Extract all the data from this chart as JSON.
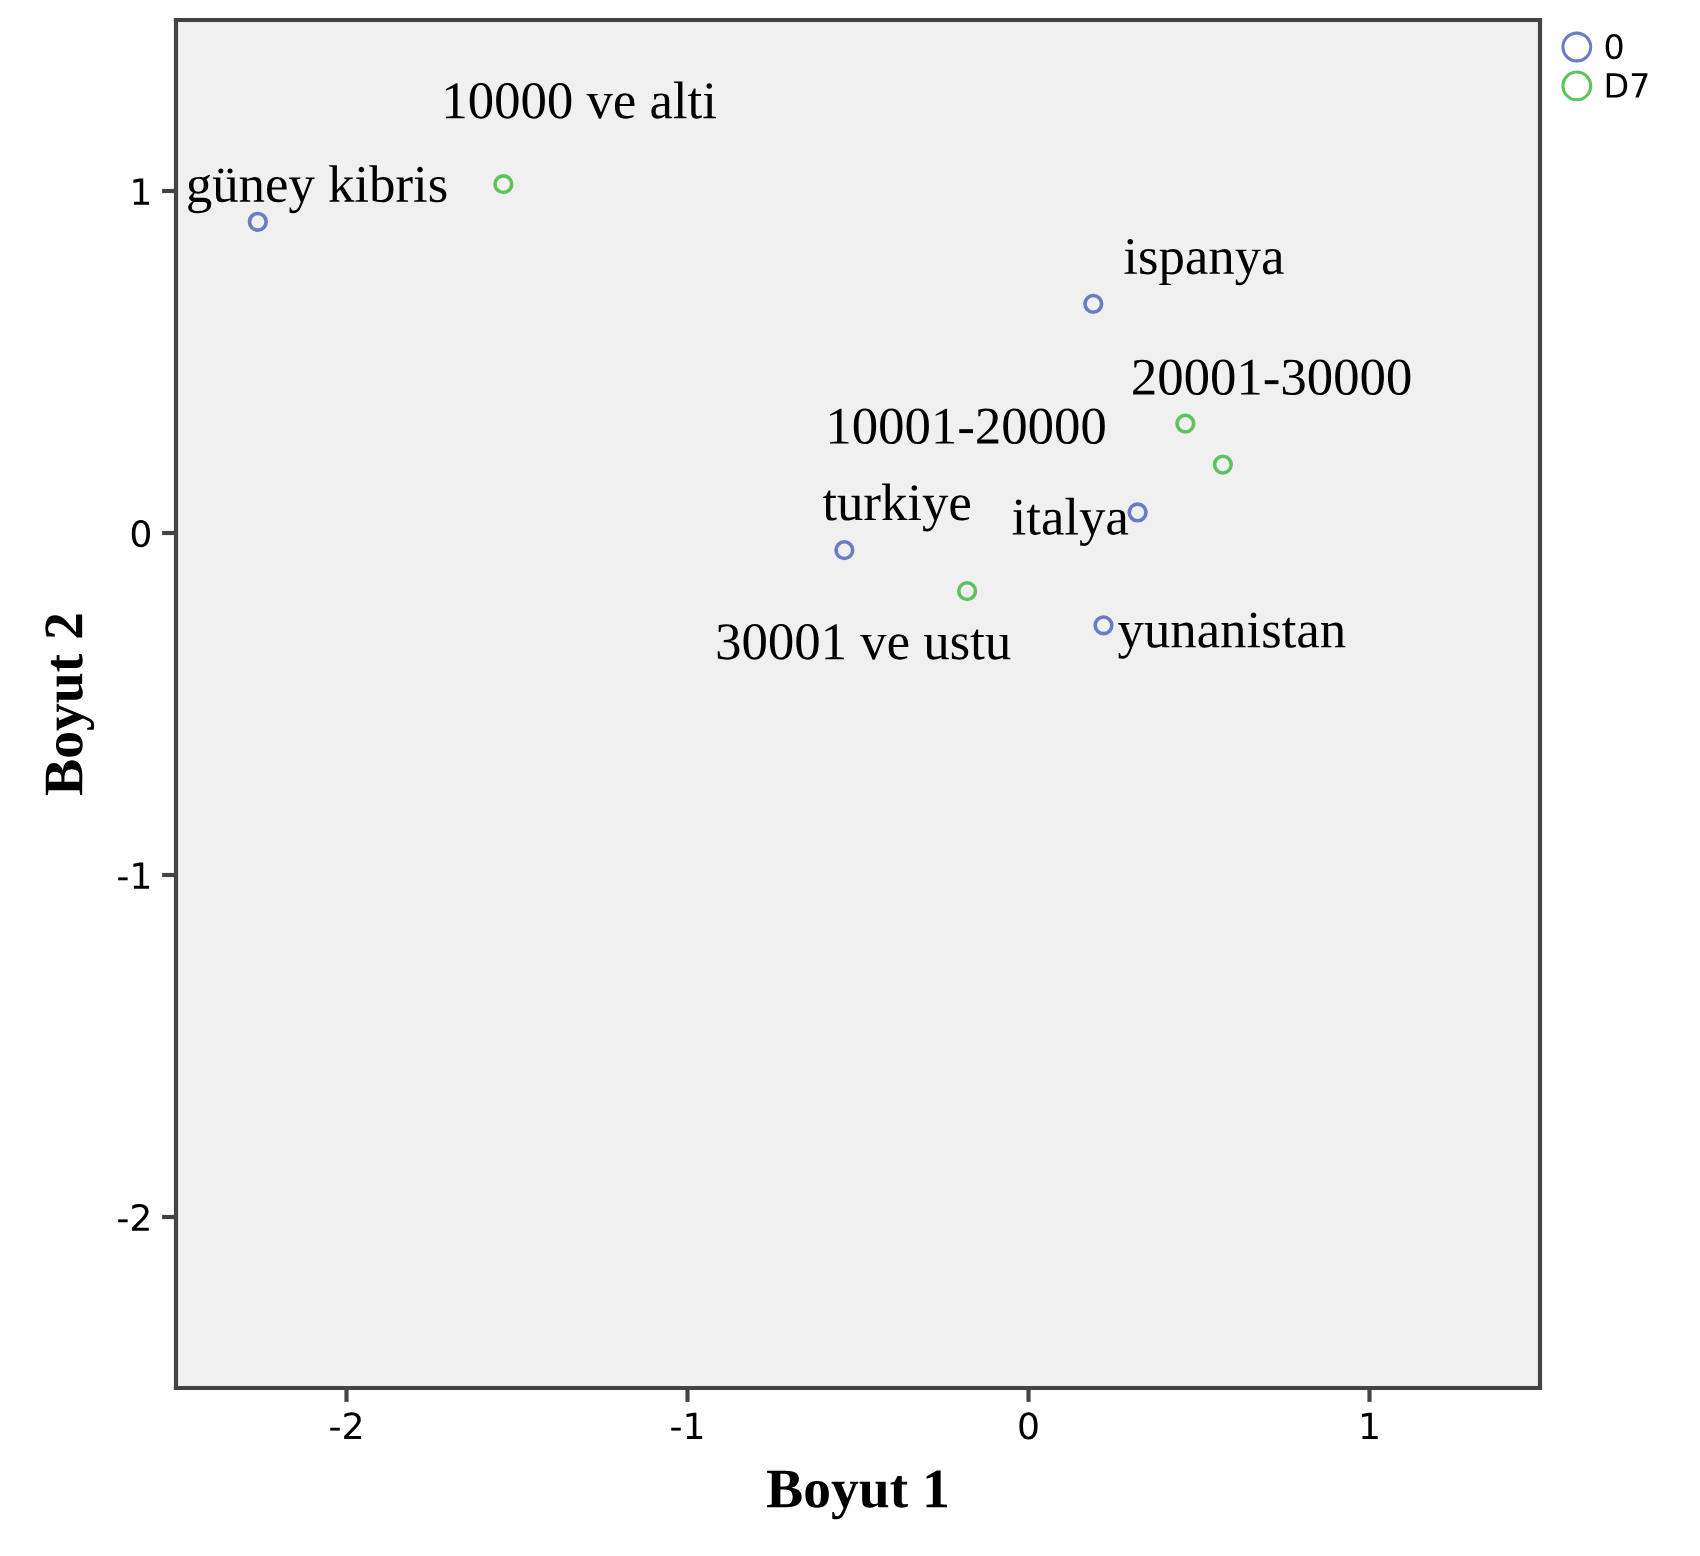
{
  "chart_data": {
    "type": "scatter",
    "xlabel": "Boyut 1",
    "ylabel": "Boyut 2",
    "xlim": [
      -2.5,
      1.5
    ],
    "ylim": [
      -2.5,
      1.5
    ],
    "xticks": [
      -2,
      -1,
      0,
      1
    ],
    "yticks": [
      -2,
      -1,
      0,
      1
    ],
    "grid": false,
    "legend": "top right",
    "marker": "circle",
    "series": [
      {
        "name": "0",
        "color": "#6b7cc4",
        "x": [
          -2.26,
          0.19,
          0.32,
          -0.54,
          0.22
        ],
        "values": [
          0.91,
          0.67,
          0.06,
          -0.05,
          -0.27
        ]
      },
      {
        "name": "D7",
        "color": "#5cc45c",
        "x": [
          -1.54,
          0.57,
          0.46,
          -0.18
        ],
        "values": [
          1.02,
          0.2,
          0.32,
          -0.17
        ]
      }
    ],
    "annotations": [
      {
        "text": "güney kibris",
        "x": -2.26,
        "y": 0.91
      },
      {
        "text": "10000 ve alti",
        "x": -1.54,
        "y": 1.02
      },
      {
        "text": "ispanya",
        "x": 0.19,
        "y": 0.67
      },
      {
        "text": "20001-30000",
        "x": 0.57,
        "y": 0.2
      },
      {
        "text": "10001-20000",
        "x": 0.46,
        "y": 0.32
      },
      {
        "text": "italya",
        "x": 0.32,
        "y": 0.06
      },
      {
        "text": "turkiye",
        "x": -0.54,
        "y": -0.05
      },
      {
        "text": "30001 ve ustu",
        "x": -0.18,
        "y": -0.17
      },
      {
        "text": "yunanistan",
        "x": 0.22,
        "y": -0.27
      }
    ]
  }
}
